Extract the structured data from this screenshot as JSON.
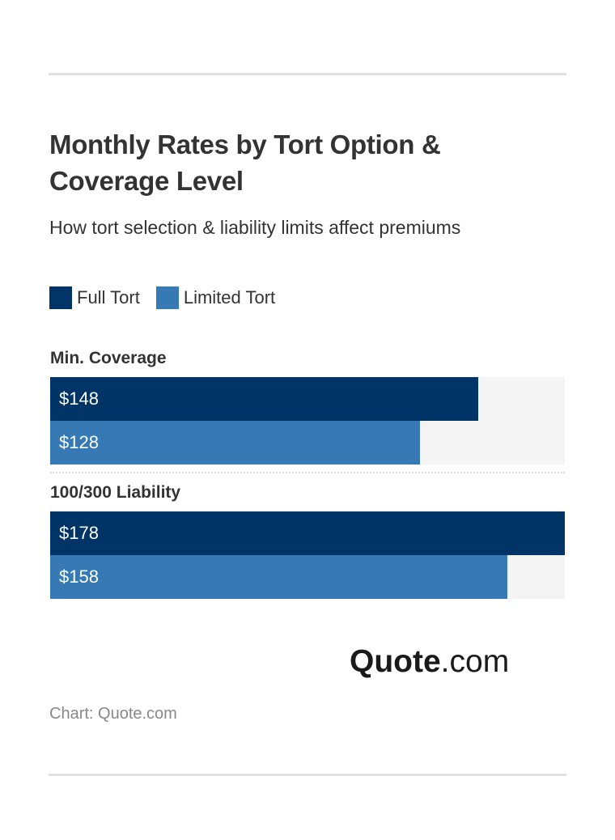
{
  "chart_data": {
    "type": "bar",
    "orientation": "horizontal",
    "title": "Monthly Rates by Tort Option & Coverage Level",
    "subtitle": "How tort selection & liability limits affect premiums",
    "categories": [
      "Min. Coverage",
      "100/300 Liability"
    ],
    "series": [
      {
        "name": "Full Tort",
        "color": "#003366",
        "values": [
          148,
          178
        ],
        "labels": [
          "$148",
          "$178"
        ]
      },
      {
        "name": "Limited Tort",
        "color": "#3679b5",
        "values": [
          128,
          158
        ],
        "labels": [
          "$128",
          "$158"
        ]
      }
    ],
    "xlim": [
      0,
      178
    ],
    "legend": "top-left",
    "grid": false
  },
  "branding": {
    "logo_bold": "Quote",
    "logo_light": ".com"
  },
  "source": "Chart: Quote.com"
}
